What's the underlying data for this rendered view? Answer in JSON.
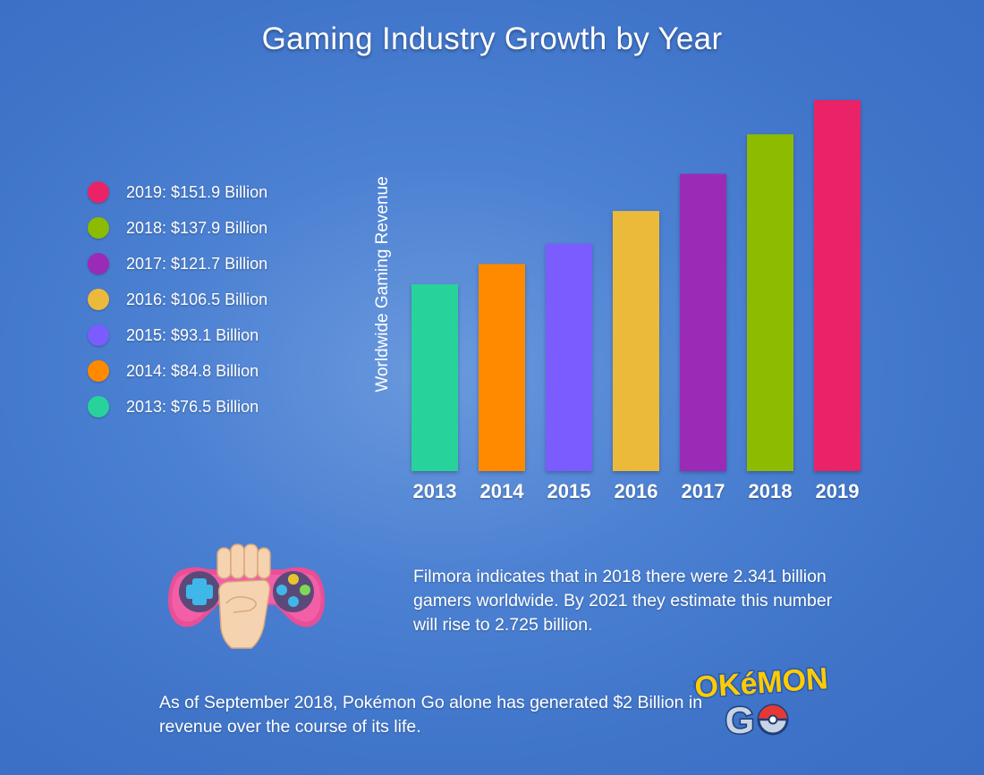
{
  "chart_data": {
    "type": "bar",
    "title": "Gaming Industry Growth by Year",
    "ylabel": "Worldwide Gaming Revenue",
    "xlabel": "",
    "categories": [
      "2013",
      "2014",
      "2015",
      "2016",
      "2017",
      "2018",
      "2019"
    ],
    "values": [
      76.5,
      84.8,
      93.1,
      106.5,
      121.7,
      137.9,
      151.9
    ],
    "unit": "Billion",
    "colors": [
      "#27d39b",
      "#ff8a00",
      "#7b5cff",
      "#ecba3b",
      "#9b2bb6",
      "#8dbb00",
      "#ea2368"
    ],
    "legend": [
      {
        "label": "2019: $151.9 Billion",
        "color": "#ea2368"
      },
      {
        "label": "2018: $137.9 Billion",
        "color": "#8dbb00"
      },
      {
        "label": "2017: $121.7 Billion",
        "color": "#9b2bb6"
      },
      {
        "label": "2016: $106.5 Billion",
        "color": "#ecba3b"
      },
      {
        "label": "2015: $93.1 Billion",
        "color": "#7b5cff"
      },
      {
        "label": "2014: $84.8 Billion",
        "color": "#ff8a00"
      },
      {
        "label": "2013: $76.5 Billion",
        "color": "#27d39b"
      }
    ],
    "legend_position": "left",
    "grid": false
  },
  "facts": {
    "gamers": "Filmora indicates that in 2018 there were 2.341 billion gamers worldwide. By 2021 they estimate this number will rise to 2.725 billion.",
    "pokemon": "As of September 2018, Pokémon Go alone has generated $2 Billion in revenue over the course of its life."
  },
  "logo": {
    "line1": "POKéMON",
    "line2": "GO"
  },
  "icons": {
    "controller": "game-controller-fist-icon"
  }
}
